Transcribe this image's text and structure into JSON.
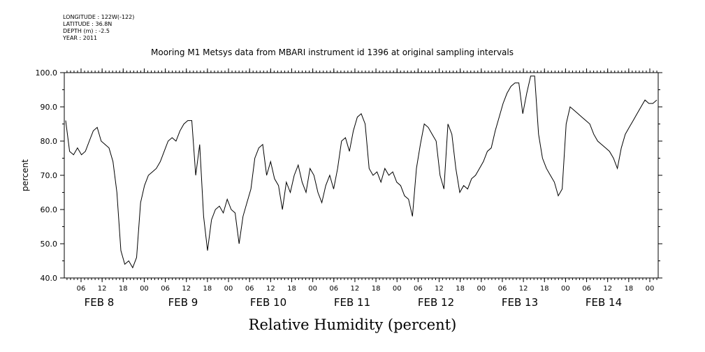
{
  "header": {
    "longitude": "LONGITUDE : 122W(-122)",
    "latitude": "LATITUDE : 36.8N",
    "depth": "DEPTH (m) : -2.5",
    "year": "YEAR : 2011",
    "title": "Mooring M1 Metsys data from MBARI instrument id 1396 at original sampling intervals"
  },
  "chart_data": {
    "type": "line",
    "title": "Mooring M1 Metsys data from MBARI instrument id 1396 at original sampling intervals",
    "xlabel": "Relative Humidity (percent)",
    "ylabel": "percent",
    "ylim": [
      40,
      100
    ],
    "yticks": [
      40,
      50,
      60,
      70,
      80,
      90,
      100
    ],
    "xlim_hours_label": "Feb 7 ~00:00 to Feb 15 00:00 (hourly ticks)",
    "x_hour_ticks": [
      "06",
      "12",
      "18",
      "00",
      "06",
      "12",
      "18",
      "00",
      "06",
      "12",
      "18",
      "00",
      "06",
      "12",
      "18",
      "00",
      "06",
      "12",
      "18",
      "00",
      "06",
      "12",
      "18",
      "00",
      "06",
      "12",
      "18",
      "00"
    ],
    "day_labels": [
      "FEB 8",
      "FEB 9",
      "FEB 10",
      "FEB 11",
      "FEB 12",
      "FEB 13",
      "FEB 14"
    ],
    "grid": false,
    "line_color": "#000000",
    "series": [
      {
        "values": [
          [
            0,
            86
          ],
          [
            1,
            77
          ],
          [
            2,
            76
          ],
          [
            3,
            78
          ],
          [
            4,
            76
          ],
          [
            5,
            77
          ],
          [
            6,
            80
          ],
          [
            7,
            83
          ],
          [
            8,
            84
          ],
          [
            9,
            80
          ],
          [
            10,
            79
          ],
          [
            11,
            78
          ],
          [
            12,
            74
          ],
          [
            13,
            65
          ],
          [
            14,
            48
          ],
          [
            15,
            44
          ],
          [
            16,
            45
          ],
          [
            17,
            43
          ],
          [
            18,
            46
          ],
          [
            19,
            62
          ],
          [
            20,
            67
          ],
          [
            21,
            70
          ],
          [
            22,
            71
          ],
          [
            23,
            72
          ],
          [
            24,
            74
          ],
          [
            25,
            77
          ],
          [
            26,
            80
          ],
          [
            27,
            81
          ],
          [
            28,
            80
          ],
          [
            29,
            83
          ],
          [
            30,
            85
          ],
          [
            31,
            86
          ],
          [
            32,
            86
          ],
          [
            33,
            70
          ],
          [
            34,
            79
          ],
          [
            35,
            58
          ],
          [
            36,
            48
          ],
          [
            37,
            57
          ],
          [
            38,
            60
          ],
          [
            39,
            61
          ],
          [
            40,
            59
          ],
          [
            41,
            63
          ],
          [
            42,
            60
          ],
          [
            43,
            59
          ],
          [
            44,
            50
          ],
          [
            45,
            58
          ],
          [
            46,
            62
          ],
          [
            47,
            66
          ],
          [
            48,
            75
          ],
          [
            49,
            78
          ],
          [
            50,
            79
          ],
          [
            51,
            70
          ],
          [
            52,
            74
          ],
          [
            53,
            69
          ],
          [
            54,
            67
          ],
          [
            55,
            60
          ],
          [
            56,
            68
          ],
          [
            57,
            65
          ],
          [
            58,
            70
          ],
          [
            59,
            73
          ],
          [
            60,
            68
          ],
          [
            61,
            65
          ],
          [
            62,
            72
          ],
          [
            63,
            70
          ],
          [
            64,
            65
          ],
          [
            65,
            62
          ],
          [
            66,
            67
          ],
          [
            67,
            70
          ],
          [
            68,
            66
          ],
          [
            69,
            72
          ],
          [
            70,
            80
          ],
          [
            71,
            81
          ],
          [
            72,
            77
          ],
          [
            73,
            83
          ],
          [
            74,
            87
          ],
          [
            75,
            88
          ],
          [
            76,
            85
          ],
          [
            77,
            72
          ],
          [
            78,
            70
          ],
          [
            79,
            71
          ],
          [
            80,
            68
          ],
          [
            81,
            72
          ],
          [
            82,
            70
          ],
          [
            83,
            71
          ],
          [
            84,
            68
          ],
          [
            85,
            67
          ],
          [
            86,
            64
          ],
          [
            87,
            63
          ],
          [
            88,
            58
          ],
          [
            89,
            72
          ],
          [
            90,
            79
          ],
          [
            91,
            85
          ],
          [
            92,
            84
          ],
          [
            93,
            82
          ],
          [
            94,
            80
          ],
          [
            95,
            70
          ],
          [
            96,
            66
          ],
          [
            97,
            85
          ],
          [
            98,
            82
          ],
          [
            99,
            72
          ],
          [
            100,
            65
          ],
          [
            101,
            67
          ],
          [
            102,
            66
          ],
          [
            103,
            69
          ],
          [
            104,
            70
          ],
          [
            105,
            72
          ],
          [
            106,
            74
          ],
          [
            107,
            77
          ],
          [
            108,
            78
          ],
          [
            109,
            83
          ],
          [
            110,
            87
          ],
          [
            111,
            91
          ],
          [
            112,
            94
          ],
          [
            113,
            96
          ],
          [
            114,
            97
          ],
          [
            115,
            97
          ],
          [
            116,
            88
          ],
          [
            117,
            94
          ],
          [
            118,
            99
          ],
          [
            119,
            99
          ],
          [
            120,
            82
          ],
          [
            121,
            75
          ],
          [
            122,
            72
          ],
          [
            123,
            70
          ],
          [
            124,
            68
          ],
          [
            125,
            64
          ],
          [
            126,
            66
          ],
          [
            127,
            85
          ],
          [
            128,
            90
          ],
          [
            129,
            89
          ],
          [
            130,
            88
          ],
          [
            131,
            87
          ],
          [
            132,
            86
          ],
          [
            133,
            85
          ],
          [
            134,
            82
          ],
          [
            135,
            80
          ],
          [
            136,
            79
          ],
          [
            137,
            78
          ],
          [
            138,
            77
          ],
          [
            139,
            75
          ],
          [
            140,
            72
          ],
          [
            141,
            78
          ],
          [
            142,
            82
          ],
          [
            143,
            84
          ],
          [
            144,
            86
          ],
          [
            145,
            88
          ],
          [
            146,
            90
          ],
          [
            147,
            92
          ],
          [
            148,
            91
          ],
          [
            149,
            91
          ],
          [
            150,
            92
          ]
        ]
      }
    ]
  }
}
